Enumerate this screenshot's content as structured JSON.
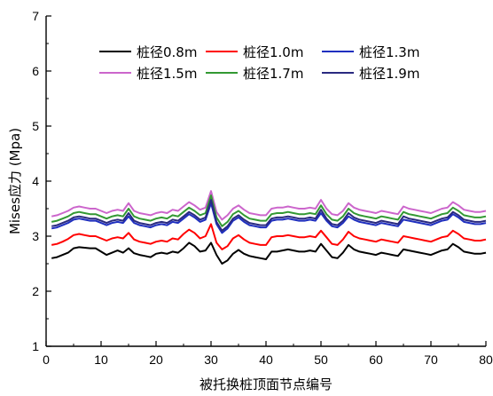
{
  "chart_data": {
    "type": "line",
    "xlabel": "被托换桩顶面节点编号",
    "ylabel": "Mises应力 (Mpa)",
    "xlim": [
      0,
      80
    ],
    "ylim": [
      1,
      7
    ],
    "xticks": [
      "0",
      "10",
      "20",
      "30",
      "40",
      "50",
      "60",
      "70",
      "80"
    ],
    "yticks": [
      "1",
      "2",
      "3",
      "4",
      "5",
      "6",
      "7"
    ],
    "grid": false,
    "legend_position": "top",
    "legend_columns": 3,
    "x": [
      1,
      2,
      3,
      4,
      5,
      6,
      7,
      8,
      9,
      10,
      11,
      12,
      13,
      14,
      15,
      16,
      17,
      18,
      19,
      20,
      21,
      22,
      23,
      24,
      25,
      26,
      27,
      28,
      29,
      30,
      31,
      32,
      33,
      34,
      35,
      36,
      37,
      38,
      39,
      40,
      41,
      42,
      43,
      44,
      45,
      46,
      47,
      48,
      49,
      50,
      51,
      52,
      53,
      54,
      55,
      56,
      57,
      58,
      59,
      60,
      61,
      62,
      63,
      64,
      65,
      66,
      67,
      68,
      69,
      70,
      71,
      72,
      73,
      74,
      75,
      76,
      77,
      78,
      79,
      80
    ],
    "series": [
      {
        "name": "桩径0.8m",
        "color": "#000000",
        "values": [
          2.6,
          2.62,
          2.66,
          2.7,
          2.78,
          2.8,
          2.79,
          2.78,
          2.78,
          2.72,
          2.66,
          2.7,
          2.74,
          2.7,
          2.78,
          2.69,
          2.66,
          2.64,
          2.62,
          2.68,
          2.7,
          2.68,
          2.72,
          2.7,
          2.78,
          2.88,
          2.82,
          2.72,
          2.74,
          2.88,
          2.66,
          2.5,
          2.56,
          2.68,
          2.75,
          2.68,
          2.64,
          2.62,
          2.6,
          2.58,
          2.72,
          2.72,
          2.74,
          2.76,
          2.74,
          2.72,
          2.72,
          2.74,
          2.72,
          2.86,
          2.74,
          2.62,
          2.6,
          2.7,
          2.84,
          2.76,
          2.72,
          2.7,
          2.68,
          2.66,
          2.7,
          2.68,
          2.66,
          2.64,
          2.76,
          2.74,
          2.72,
          2.7,
          2.68,
          2.66,
          2.7,
          2.74,
          2.76,
          2.86,
          2.8,
          2.72,
          2.7,
          2.68,
          2.68,
          2.7
        ]
      },
      {
        "name": "桩径1.0m",
        "color": "#ff0000",
        "values": [
          2.84,
          2.86,
          2.9,
          2.95,
          3.02,
          3.04,
          3.02,
          3.0,
          3.0,
          2.96,
          2.92,
          2.96,
          2.98,
          2.96,
          3.06,
          2.94,
          2.9,
          2.88,
          2.86,
          2.9,
          2.92,
          2.9,
          2.96,
          2.94,
          3.04,
          3.12,
          3.06,
          2.96,
          3.0,
          3.22,
          2.88,
          2.76,
          2.82,
          2.96,
          3.02,
          2.94,
          2.88,
          2.86,
          2.84,
          2.84,
          2.98,
          3.0,
          3.0,
          3.02,
          3.0,
          2.98,
          2.98,
          3.0,
          2.98,
          3.1,
          2.98,
          2.86,
          2.84,
          2.94,
          3.08,
          3.0,
          2.96,
          2.94,
          2.92,
          2.9,
          2.94,
          2.92,
          2.9,
          2.88,
          3.0,
          2.98,
          2.96,
          2.94,
          2.92,
          2.9,
          2.94,
          2.98,
          3.0,
          3.1,
          3.04,
          2.96,
          2.94,
          2.92,
          2.92,
          2.94
        ]
      },
      {
        "name": "桩径1.3m",
        "color": "#1f2fbf",
        "values": [
          3.14,
          3.16,
          3.2,
          3.24,
          3.3,
          3.32,
          3.3,
          3.28,
          3.28,
          3.24,
          3.2,
          3.24,
          3.26,
          3.24,
          3.36,
          3.24,
          3.2,
          3.18,
          3.16,
          3.2,
          3.22,
          3.2,
          3.26,
          3.24,
          3.32,
          3.4,
          3.34,
          3.26,
          3.3,
          3.6,
          3.22,
          3.06,
          3.14,
          3.28,
          3.34,
          3.26,
          3.2,
          3.18,
          3.16,
          3.16,
          3.28,
          3.3,
          3.3,
          3.32,
          3.3,
          3.28,
          3.28,
          3.3,
          3.28,
          3.42,
          3.28,
          3.18,
          3.16,
          3.24,
          3.36,
          3.3,
          3.26,
          3.24,
          3.22,
          3.2,
          3.24,
          3.22,
          3.2,
          3.18,
          3.3,
          3.28,
          3.26,
          3.24,
          3.22,
          3.2,
          3.24,
          3.28,
          3.3,
          3.4,
          3.34,
          3.26,
          3.24,
          3.22,
          3.22,
          3.24
        ]
      },
      {
        "name": "桩径1.5m",
        "color": "#cc66cc",
        "values": [
          3.36,
          3.38,
          3.42,
          3.46,
          3.52,
          3.54,
          3.52,
          3.5,
          3.5,
          3.46,
          3.42,
          3.46,
          3.48,
          3.46,
          3.6,
          3.46,
          3.42,
          3.4,
          3.38,
          3.42,
          3.44,
          3.42,
          3.48,
          3.46,
          3.54,
          3.62,
          3.56,
          3.48,
          3.52,
          3.82,
          3.44,
          3.3,
          3.38,
          3.5,
          3.56,
          3.48,
          3.42,
          3.4,
          3.38,
          3.38,
          3.5,
          3.52,
          3.52,
          3.54,
          3.52,
          3.5,
          3.5,
          3.52,
          3.5,
          3.66,
          3.5,
          3.4,
          3.38,
          3.46,
          3.6,
          3.52,
          3.48,
          3.46,
          3.44,
          3.42,
          3.46,
          3.44,
          3.42,
          3.4,
          3.54,
          3.5,
          3.48,
          3.46,
          3.44,
          3.42,
          3.46,
          3.5,
          3.52,
          3.62,
          3.56,
          3.48,
          3.46,
          3.44,
          3.44,
          3.46
        ]
      },
      {
        "name": "桩径1.7m",
        "color": "#339933",
        "values": [
          3.26,
          3.28,
          3.32,
          3.36,
          3.42,
          3.44,
          3.42,
          3.4,
          3.4,
          3.36,
          3.32,
          3.36,
          3.38,
          3.36,
          3.5,
          3.36,
          3.32,
          3.3,
          3.28,
          3.32,
          3.34,
          3.32,
          3.38,
          3.36,
          3.44,
          3.52,
          3.46,
          3.38,
          3.42,
          3.74,
          3.34,
          3.18,
          3.26,
          3.4,
          3.46,
          3.38,
          3.32,
          3.3,
          3.28,
          3.28,
          3.4,
          3.42,
          3.42,
          3.44,
          3.42,
          3.4,
          3.4,
          3.42,
          3.4,
          3.56,
          3.4,
          3.3,
          3.28,
          3.36,
          3.5,
          3.42,
          3.38,
          3.36,
          3.34,
          3.32,
          3.36,
          3.34,
          3.32,
          3.3,
          3.44,
          3.4,
          3.38,
          3.36,
          3.34,
          3.32,
          3.36,
          3.4,
          3.42,
          3.52,
          3.46,
          3.38,
          3.36,
          3.34,
          3.34,
          3.36
        ]
      },
      {
        "name": "桩径1.9m",
        "color": "#2a2a80",
        "values": [
          3.18,
          3.2,
          3.24,
          3.28,
          3.34,
          3.36,
          3.34,
          3.32,
          3.32,
          3.28,
          3.24,
          3.28,
          3.3,
          3.28,
          3.42,
          3.28,
          3.24,
          3.22,
          3.2,
          3.24,
          3.26,
          3.24,
          3.3,
          3.28,
          3.36,
          3.44,
          3.38,
          3.3,
          3.34,
          3.66,
          3.26,
          3.1,
          3.18,
          3.32,
          3.38,
          3.3,
          3.24,
          3.22,
          3.2,
          3.2,
          3.32,
          3.34,
          3.34,
          3.36,
          3.34,
          3.32,
          3.32,
          3.34,
          3.32,
          3.48,
          3.32,
          3.22,
          3.2,
          3.28,
          3.42,
          3.34,
          3.3,
          3.28,
          3.26,
          3.24,
          3.28,
          3.26,
          3.24,
          3.22,
          3.36,
          3.32,
          3.3,
          3.28,
          3.26,
          3.24,
          3.28,
          3.32,
          3.34,
          3.44,
          3.38,
          3.3,
          3.28,
          3.26,
          3.26,
          3.28
        ]
      }
    ]
  }
}
